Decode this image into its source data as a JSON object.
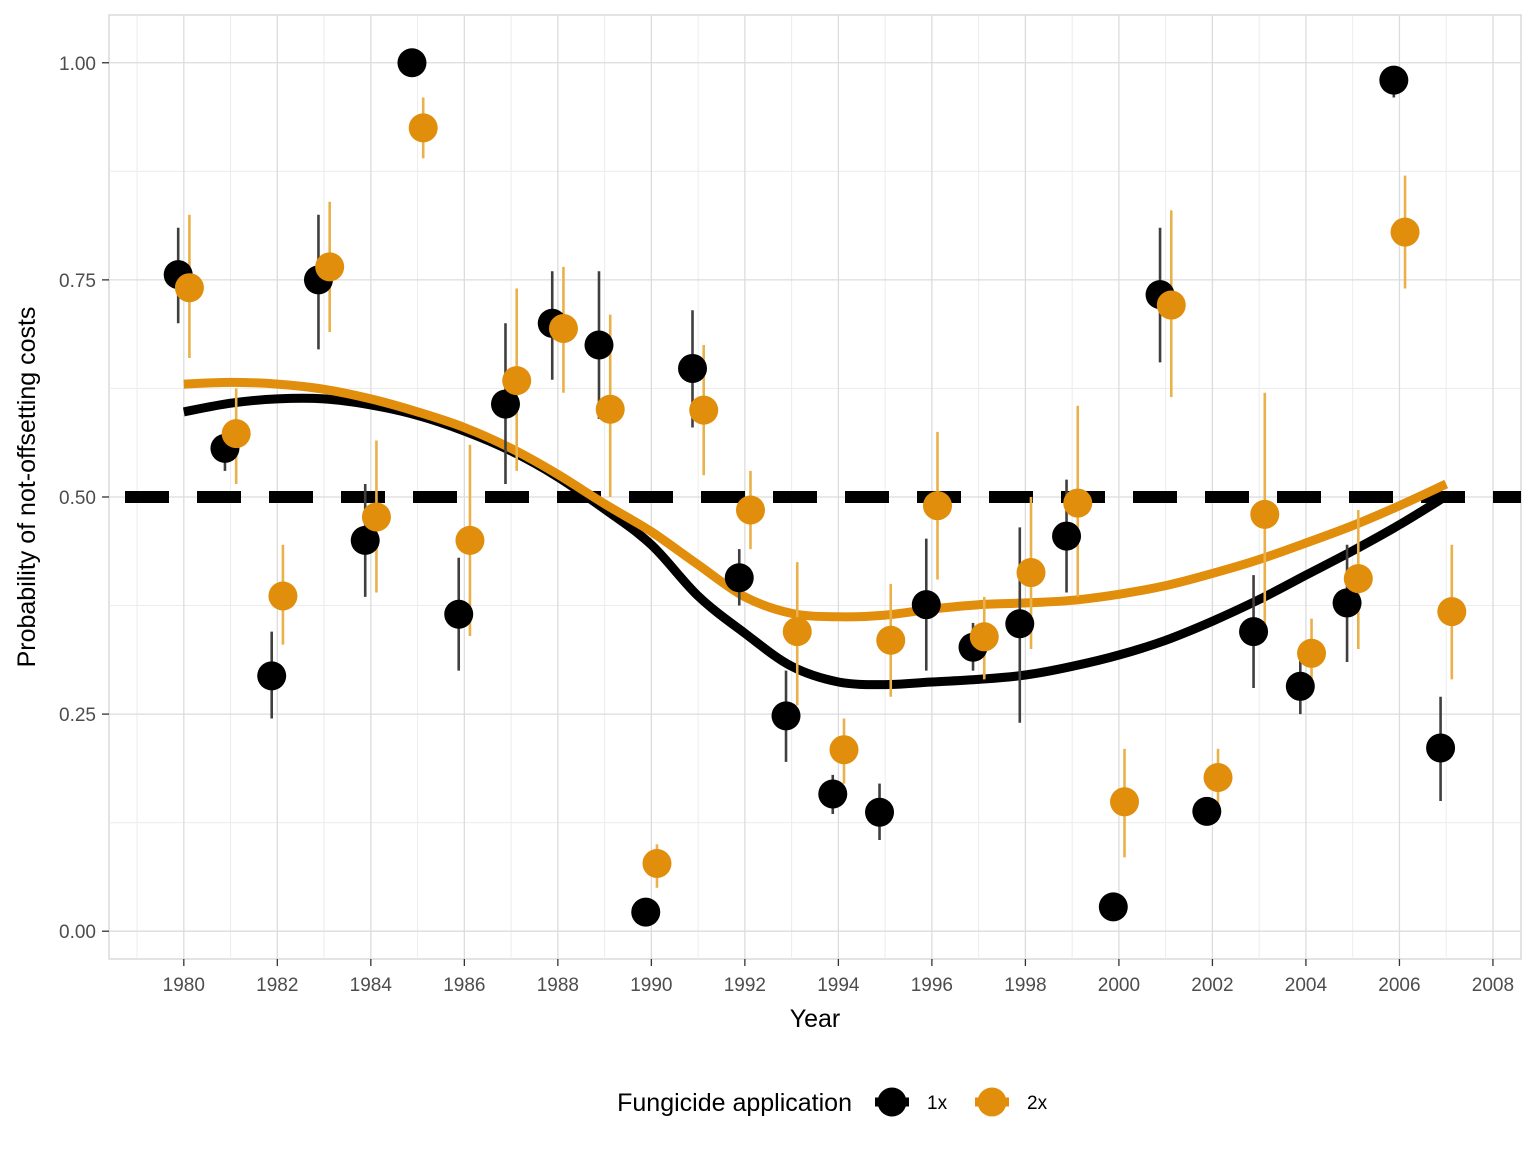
{
  "chart_data": {
    "type": "scatter",
    "title": "",
    "xlabel": "Year",
    "ylabel": "Probability of not-offsetting costs",
    "xlim": [
      1978.4,
      2008.6
    ],
    "ylim": [
      -0.032,
      1.055
    ],
    "x_ticks": [
      1980,
      1982,
      1984,
      1986,
      1988,
      1990,
      1992,
      1994,
      1996,
      1998,
      2000,
      2002,
      2004,
      2006,
      2008
    ],
    "y_ticks": [
      0.0,
      0.25,
      0.5,
      0.75,
      1.0
    ],
    "y_tick_labels": [
      "0.00",
      "0.25",
      "0.50",
      "0.75",
      "1.00"
    ],
    "grid": true,
    "reference_line": {
      "y": 0.5,
      "style": "dashed",
      "color": "#000000"
    },
    "legend": {
      "title": "Fungicide application",
      "position": "bottom"
    },
    "series": [
      {
        "name": "1x",
        "color": "#000000",
        "points": [
          {
            "x": 1980,
            "y": 0.756,
            "lo": 0.7,
            "hi": 0.81
          },
          {
            "x": 1981,
            "y": 0.556,
            "lo": 0.53,
            "hi": 0.58
          },
          {
            "x": 1982,
            "y": 0.294,
            "lo": 0.245,
            "hi": 0.345
          },
          {
            "x": 1983,
            "y": 0.75,
            "lo": 0.67,
            "hi": 0.825
          },
          {
            "x": 1984,
            "y": 0.45,
            "lo": 0.385,
            "hi": 0.515
          },
          {
            "x": 1985,
            "y": 1.0,
            "lo": 1.0,
            "hi": 1.0
          },
          {
            "x": 1986,
            "y": 0.365,
            "lo": 0.3,
            "hi": 0.43
          },
          {
            "x": 1987,
            "y": 0.607,
            "lo": 0.515,
            "hi": 0.7
          },
          {
            "x": 1988,
            "y": 0.7,
            "lo": 0.635,
            "hi": 0.76
          },
          {
            "x": 1989,
            "y": 0.675,
            "lo": 0.59,
            "hi": 0.76
          },
          {
            "x": 1990,
            "y": 0.022,
            "lo": 0.02,
            "hi": 0.025
          },
          {
            "x": 1991,
            "y": 0.648,
            "lo": 0.58,
            "hi": 0.715
          },
          {
            "x": 1992,
            "y": 0.407,
            "lo": 0.375,
            "hi": 0.44
          },
          {
            "x": 1993,
            "y": 0.248,
            "lo": 0.195,
            "hi": 0.3
          },
          {
            "x": 1994,
            "y": 0.158,
            "lo": 0.135,
            "hi": 0.18
          },
          {
            "x": 1995,
            "y": 0.137,
            "lo": 0.105,
            "hi": 0.17
          },
          {
            "x": 1996,
            "y": 0.376,
            "lo": 0.3,
            "hi": 0.452
          },
          {
            "x": 1997,
            "y": 0.327,
            "lo": 0.3,
            "hi": 0.355
          },
          {
            "x": 1998,
            "y": 0.354,
            "lo": 0.24,
            "hi": 0.465
          },
          {
            "x": 1999,
            "y": 0.455,
            "lo": 0.39,
            "hi": 0.52
          },
          {
            "x": 2000,
            "y": 0.028,
            "lo": 0.025,
            "hi": 0.03
          },
          {
            "x": 2001,
            "y": 0.733,
            "lo": 0.655,
            "hi": 0.81
          },
          {
            "x": 2002,
            "y": 0.138,
            "lo": 0.13,
            "hi": 0.145
          },
          {
            "x": 2003,
            "y": 0.345,
            "lo": 0.28,
            "hi": 0.41
          },
          {
            "x": 2004,
            "y": 0.282,
            "lo": 0.25,
            "hi": 0.315
          },
          {
            "x": 2005,
            "y": 0.378,
            "lo": 0.31,
            "hi": 0.445
          },
          {
            "x": 2006,
            "y": 0.98,
            "lo": 0.96,
            "hi": 0.995
          },
          {
            "x": 2007,
            "y": 0.211,
            "lo": 0.15,
            "hi": 0.27
          }
        ],
        "smooth": [
          {
            "x": 1980,
            "y": 0.598
          },
          {
            "x": 1981,
            "y": 0.608
          },
          {
            "x": 1982,
            "y": 0.613
          },
          {
            "x": 1983,
            "y": 0.613
          },
          {
            "x": 1984,
            "y": 0.606
          },
          {
            "x": 1985,
            "y": 0.594
          },
          {
            "x": 1986,
            "y": 0.576
          },
          {
            "x": 1987,
            "y": 0.553
          },
          {
            "x": 1988,
            "y": 0.523
          },
          {
            "x": 1989,
            "y": 0.486
          },
          {
            "x": 1990,
            "y": 0.445
          },
          {
            "x": 1991,
            "y": 0.386
          },
          {
            "x": 1992,
            "y": 0.343
          },
          {
            "x": 1993,
            "y": 0.305
          },
          {
            "x": 1994,
            "y": 0.287
          },
          {
            "x": 1995,
            "y": 0.284
          },
          {
            "x": 1996,
            "y": 0.287
          },
          {
            "x": 1997,
            "y": 0.29
          },
          {
            "x": 1998,
            "y": 0.295
          },
          {
            "x": 1999,
            "y": 0.305
          },
          {
            "x": 2000,
            "y": 0.318
          },
          {
            "x": 2001,
            "y": 0.335
          },
          {
            "x": 2002,
            "y": 0.357
          },
          {
            "x": 2003,
            "y": 0.382
          },
          {
            "x": 2004,
            "y": 0.41
          },
          {
            "x": 2005,
            "y": 0.438
          },
          {
            "x": 2006,
            "y": 0.468
          },
          {
            "x": 2007,
            "y": 0.501
          }
        ]
      },
      {
        "name": "2x",
        "color": "#e08e0b",
        "points": [
          {
            "x": 1980,
            "y": 0.741,
            "lo": 0.66,
            "hi": 0.825
          },
          {
            "x": 1981,
            "y": 0.573,
            "lo": 0.515,
            "hi": 0.625
          },
          {
            "x": 1982,
            "y": 0.386,
            "lo": 0.33,
            "hi": 0.445
          },
          {
            "x": 1983,
            "y": 0.765,
            "lo": 0.69,
            "hi": 0.84
          },
          {
            "x": 1984,
            "y": 0.477,
            "lo": 0.39,
            "hi": 0.565
          },
          {
            "x": 1985,
            "y": 0.925,
            "lo": 0.89,
            "hi": 0.96
          },
          {
            "x": 1986,
            "y": 0.45,
            "lo": 0.34,
            "hi": 0.56
          },
          {
            "x": 1987,
            "y": 0.634,
            "lo": 0.53,
            "hi": 0.74
          },
          {
            "x": 1988,
            "y": 0.694,
            "lo": 0.62,
            "hi": 0.765
          },
          {
            "x": 1989,
            "y": 0.601,
            "lo": 0.5,
            "hi": 0.71
          },
          {
            "x": 1990,
            "y": 0.078,
            "lo": 0.05,
            "hi": 0.1
          },
          {
            "x": 1991,
            "y": 0.6,
            "lo": 0.525,
            "hi": 0.675
          },
          {
            "x": 1992,
            "y": 0.485,
            "lo": 0.44,
            "hi": 0.53
          },
          {
            "x": 1993,
            "y": 0.345,
            "lo": 0.26,
            "hi": 0.425
          },
          {
            "x": 1994,
            "y": 0.209,
            "lo": 0.17,
            "hi": 0.245
          },
          {
            "x": 1995,
            "y": 0.335,
            "lo": 0.27,
            "hi": 0.4
          },
          {
            "x": 1996,
            "y": 0.49,
            "lo": 0.405,
            "hi": 0.575
          },
          {
            "x": 1997,
            "y": 0.339,
            "lo": 0.29,
            "hi": 0.385
          },
          {
            "x": 1998,
            "y": 0.413,
            "lo": 0.325,
            "hi": 0.5
          },
          {
            "x": 1999,
            "y": 0.493,
            "lo": 0.385,
            "hi": 0.605
          },
          {
            "x": 2000,
            "y": 0.149,
            "lo": 0.085,
            "hi": 0.21
          },
          {
            "x": 2001,
            "y": 0.721,
            "lo": 0.615,
            "hi": 0.83
          },
          {
            "x": 2002,
            "y": 0.177,
            "lo": 0.145,
            "hi": 0.21
          },
          {
            "x": 2003,
            "y": 0.48,
            "lo": 0.34,
            "hi": 0.62
          },
          {
            "x": 2004,
            "y": 0.32,
            "lo": 0.28,
            "hi": 0.36
          },
          {
            "x": 2005,
            "y": 0.406,
            "lo": 0.325,
            "hi": 0.485
          },
          {
            "x": 2006,
            "y": 0.805,
            "lo": 0.74,
            "hi": 0.87
          },
          {
            "x": 2007,
            "y": 0.368,
            "lo": 0.29,
            "hi": 0.445
          }
        ],
        "smooth": [
          {
            "x": 1980,
            "y": 0.63
          },
          {
            "x": 1981,
            "y": 0.632
          },
          {
            "x": 1982,
            "y": 0.63
          },
          {
            "x": 1983,
            "y": 0.624
          },
          {
            "x": 1984,
            "y": 0.613
          },
          {
            "x": 1985,
            "y": 0.598
          },
          {
            "x": 1986,
            "y": 0.58
          },
          {
            "x": 1987,
            "y": 0.556
          },
          {
            "x": 1988,
            "y": 0.526
          },
          {
            "x": 1989,
            "y": 0.492
          },
          {
            "x": 1990,
            "y": 0.46
          },
          {
            "x": 1991,
            "y": 0.422
          },
          {
            "x": 1992,
            "y": 0.385
          },
          {
            "x": 1993,
            "y": 0.366
          },
          {
            "x": 1994,
            "y": 0.362
          },
          {
            "x": 1995,
            "y": 0.364
          },
          {
            "x": 1996,
            "y": 0.371
          },
          {
            "x": 1997,
            "y": 0.376
          },
          {
            "x": 1998,
            "y": 0.378
          },
          {
            "x": 1999,
            "y": 0.381
          },
          {
            "x": 2000,
            "y": 0.388
          },
          {
            "x": 2001,
            "y": 0.398
          },
          {
            "x": 2002,
            "y": 0.412
          },
          {
            "x": 2003,
            "y": 0.428
          },
          {
            "x": 2004,
            "y": 0.447
          },
          {
            "x": 2005,
            "y": 0.467
          },
          {
            "x": 2006,
            "y": 0.49
          },
          {
            "x": 2007,
            "y": 0.515
          }
        ]
      }
    ]
  }
}
